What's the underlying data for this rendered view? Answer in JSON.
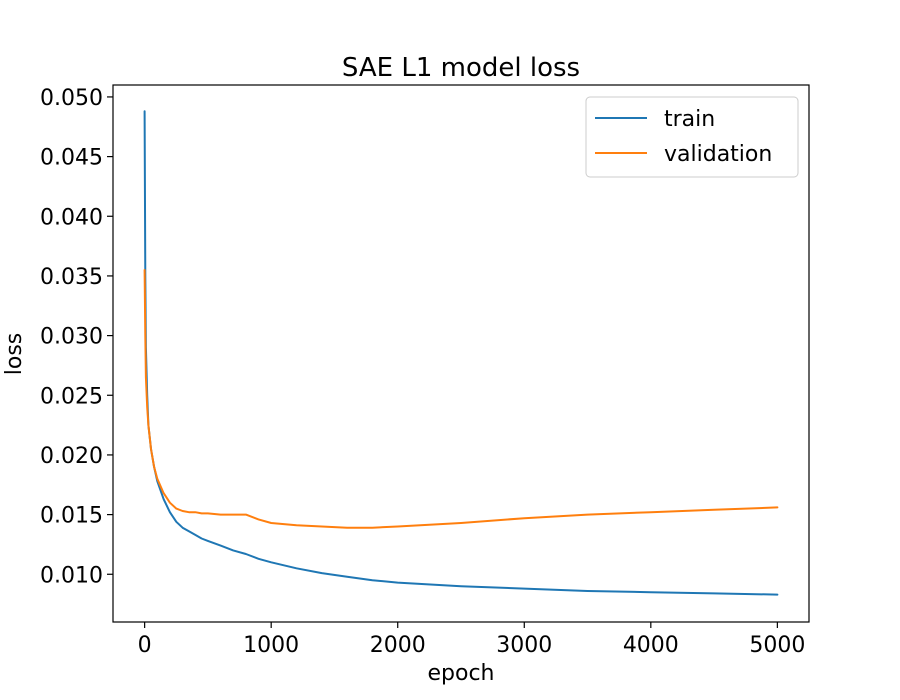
{
  "chart_data": {
    "type": "line",
    "title": "SAE L1 model loss",
    "xlabel": "epoch",
    "ylabel": "loss",
    "xlim": [
      -250,
      5250
    ],
    "ylim": [
      0.006,
      0.051
    ],
    "xticks": [
      0,
      1000,
      2000,
      3000,
      4000,
      5000
    ],
    "xtick_labels": [
      "0",
      "1000",
      "2000",
      "3000",
      "4000",
      "5000"
    ],
    "yticks": [
      0.01,
      0.015,
      0.02,
      0.025,
      0.03,
      0.035,
      0.04,
      0.045,
      0.05
    ],
    "ytick_labels": [
      "0.010",
      "0.015",
      "0.020",
      "0.025",
      "0.030",
      "0.035",
      "0.040",
      "0.045",
      "0.050"
    ],
    "grid": false,
    "legend": {
      "position": "top-right"
    },
    "series": [
      {
        "name": "train",
        "color": "#1f77b4",
        "x": [
          0,
          5,
          10,
          20,
          30,
          50,
          75,
          100,
          150,
          200,
          250,
          300,
          350,
          400,
          450,
          500,
          600,
          700,
          800,
          900,
          1000,
          1200,
          1400,
          1600,
          1800,
          2000,
          2500,
          3000,
          3500,
          4000,
          4500,
          5000
        ],
        "y": [
          0.0488,
          0.035,
          0.029,
          0.025,
          0.0225,
          0.0205,
          0.019,
          0.0178,
          0.0163,
          0.0152,
          0.0144,
          0.0139,
          0.0136,
          0.0133,
          0.013,
          0.0128,
          0.0124,
          0.012,
          0.0117,
          0.0113,
          0.011,
          0.0105,
          0.0101,
          0.0098,
          0.0095,
          0.0093,
          0.009,
          0.0088,
          0.0086,
          0.0085,
          0.0084,
          0.0083
        ]
      },
      {
        "name": "validation",
        "color": "#ff7f0e",
        "x": [
          0,
          5,
          10,
          20,
          30,
          50,
          75,
          100,
          150,
          200,
          250,
          300,
          350,
          400,
          450,
          500,
          600,
          700,
          750,
          800,
          900,
          1000,
          1200,
          1400,
          1600,
          1700,
          1800,
          2000,
          2500,
          3000,
          3500,
          4000,
          4500,
          5000
        ],
        "y": [
          0.0355,
          0.03,
          0.0265,
          0.024,
          0.0225,
          0.0205,
          0.019,
          0.018,
          0.0168,
          0.016,
          0.0155,
          0.0153,
          0.0152,
          0.0152,
          0.0151,
          0.0151,
          0.015,
          0.015,
          0.015,
          0.015,
          0.0146,
          0.0143,
          0.0141,
          0.014,
          0.0139,
          0.0139,
          0.0139,
          0.014,
          0.0143,
          0.0147,
          0.015,
          0.0152,
          0.0154,
          0.0156
        ]
      }
    ]
  }
}
